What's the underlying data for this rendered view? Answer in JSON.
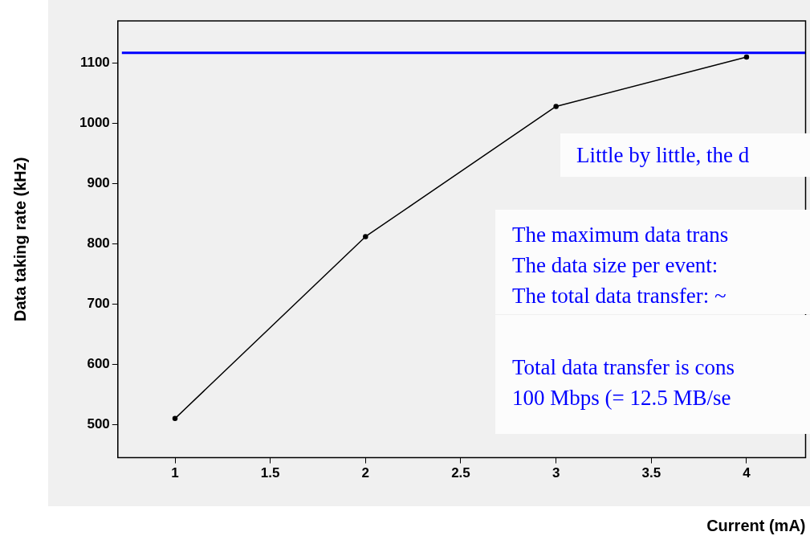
{
  "chart_data": {
    "type": "line",
    "xlabel": "Current (mA)",
    "ylabel": "Data taking rate (kHz)",
    "x": [
      1,
      2,
      3,
      4
    ],
    "series": [
      {
        "color": "#000000",
        "values": [
          510,
          812,
          1028,
          1110
        ]
      }
    ],
    "xlim": [
      0.7,
      4.31
    ],
    "xticks": [
      1,
      1.5,
      2,
      2.5,
      3,
      3.5,
      4
    ],
    "ylim": [
      445,
      1170
    ],
    "yticks": [
      500,
      600,
      700,
      800,
      900,
      1000,
      1100
    ],
    "ref_lines": [
      {
        "axis": "y",
        "value": 1117,
        "color": "#0000ff"
      }
    ],
    "annotations": [
      "Little by little, the d",
      "The maximum data trans",
      "The data size per event:",
      "The total data transfer: ~",
      "Total data transfer is cons",
      "100 Mbps (= 12.5 MB/se"
    ],
    "grid": false,
    "legend": false,
    "marker": "circle",
    "line_style": "solid"
  }
}
